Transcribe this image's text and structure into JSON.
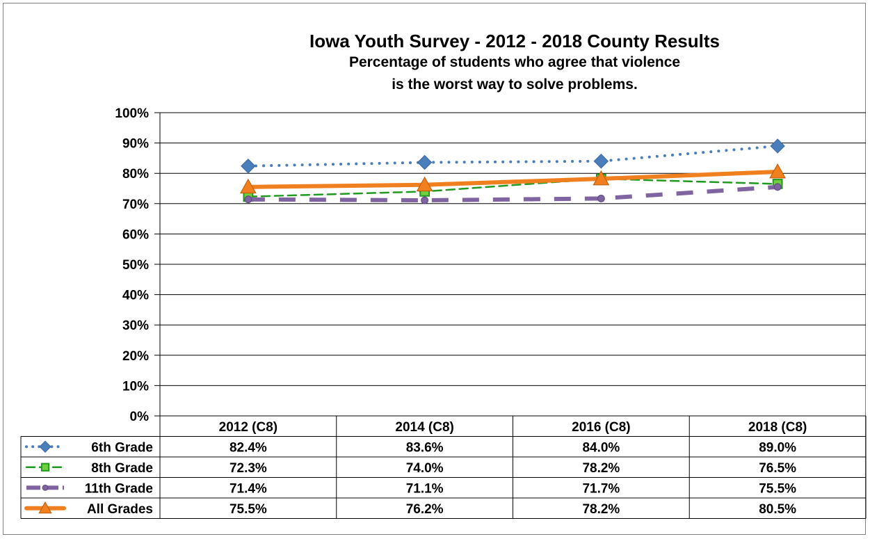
{
  "chart_data": {
    "type": "line",
    "title": "Iowa Youth Survey - 2012 - 2018 County Results",
    "subtitle_line1": "Percentage of students who agree that violence",
    "subtitle_line2": "is the worst way to solve problems.",
    "categories": [
      "2012 (C8)",
      "2014 (C8)",
      "2016 (C8)",
      "2018 (C8)"
    ],
    "ylim": [
      0,
      100
    ],
    "yticks": [
      0,
      10,
      20,
      30,
      40,
      50,
      60,
      70,
      80,
      90,
      100
    ],
    "ytick_labels": [
      "0%",
      "10%",
      "20%",
      "30%",
      "40%",
      "50%",
      "60%",
      "70%",
      "80%",
      "90%",
      "100%"
    ],
    "grid": true,
    "legend": "data-table-bottom",
    "series": [
      {
        "name": "6th Grade",
        "values": [
          82.4,
          83.6,
          84.0,
          89.0
        ],
        "labels": [
          "82.4%",
          "83.6%",
          "84.0%",
          "89.0%"
        ],
        "color": "#4a7ebb",
        "style": "dotted",
        "marker": "diamond"
      },
      {
        "name": "8th Grade",
        "values": [
          72.3,
          74.0,
          78.2,
          76.5
        ],
        "labels": [
          "72.3%",
          "74.0%",
          "78.2%",
          "76.5%"
        ],
        "color": "#1f9a1f",
        "style": "dashed",
        "marker": "square"
      },
      {
        "name": "11th Grade",
        "values": [
          71.4,
          71.1,
          71.7,
          75.5
        ],
        "labels": [
          "71.4%",
          "71.1%",
          "71.7%",
          "75.5%"
        ],
        "color": "#8064a2",
        "style": "long-dash",
        "marker": "circle"
      },
      {
        "name": "All Grades",
        "values": [
          75.5,
          76.2,
          78.2,
          80.5
        ],
        "labels": [
          "75.5%",
          "76.2%",
          "78.2%",
          "80.5%"
        ],
        "color": "#f07f20",
        "style": "solid",
        "marker": "triangle"
      }
    ]
  }
}
